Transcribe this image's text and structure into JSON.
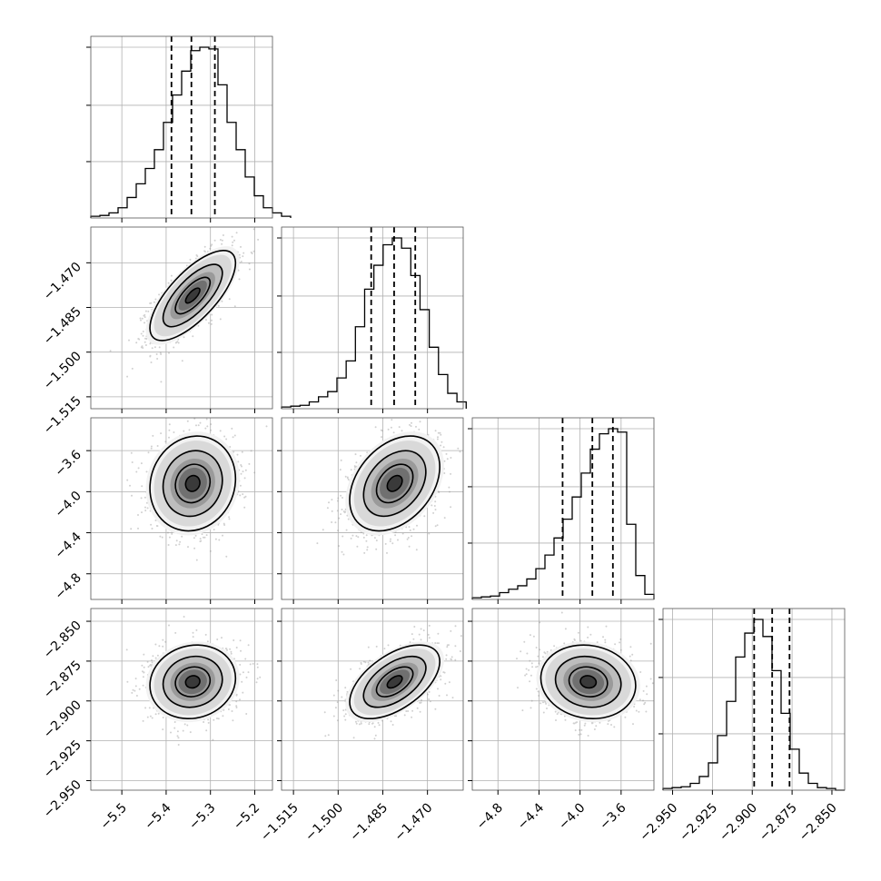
{
  "chart_data": {
    "type": "corner",
    "title": "",
    "n_params": 4,
    "params": [
      {
        "range": [
          -5.57,
          -5.16
        ],
        "ticks": [
          -5.5,
          -5.4,
          -5.3,
          -5.2
        ],
        "tick_labels": [
          "−5.5",
          "−5.4",
          "−5.3",
          "−5.2"
        ],
        "quantiles": [
          -5.388,
          -5.343,
          -5.29
        ],
        "hist_edges_start": -5.57,
        "hist_bin_width": 0.0205,
        "hist": [
          0.01,
          0.015,
          0.03,
          0.06,
          0.12,
          0.2,
          0.29,
          0.4,
          0.56,
          0.72,
          0.86,
          0.98,
          1.0,
          0.99,
          0.78,
          0.56,
          0.4,
          0.24,
          0.13,
          0.06,
          0.03,
          0.01
        ],
        "mean": -5.34,
        "std": 0.046
      },
      {
        "range": [
          -1.519,
          -1.458
        ],
        "ticks": [
          -1.515,
          -1.5,
          -1.485,
          -1.47
        ],
        "tick_labels": [
          "−1.515",
          "−1.500",
          "−1.485",
          "−1.470"
        ],
        "quantiles": [
          -1.4889,
          -1.4812,
          -1.4741
        ],
        "hist_edges_start": -1.519,
        "hist_bin_width": 0.0031,
        "hist": [
          0.01,
          0.015,
          0.02,
          0.04,
          0.07,
          0.1,
          0.18,
          0.28,
          0.48,
          0.7,
          0.84,
          0.96,
          1.0,
          0.94,
          0.78,
          0.58,
          0.36,
          0.2,
          0.09,
          0.04
        ],
        "mean": -1.481,
        "std": 0.0072
      },
      {
        "range": [
          -5.05,
          -3.28
        ],
        "ticks": [
          -4.8,
          -4.4,
          -4.0,
          -3.6
        ],
        "tick_labels": [
          "−4.8",
          "−4.4",
          "−4.0",
          "−3.6"
        ],
        "quantiles": [
          -4.17,
          -3.88,
          -3.68
        ],
        "hist_edges_start": -5.05,
        "hist_bin_width": 0.0885,
        "hist": [
          0.01,
          0.015,
          0.02,
          0.04,
          0.06,
          0.08,
          0.12,
          0.18,
          0.26,
          0.36,
          0.47,
          0.6,
          0.74,
          0.88,
          0.97,
          1.0,
          0.98,
          0.44,
          0.14,
          0.03
        ],
        "mean": -3.92,
        "std": 0.22
      },
      {
        "range": [
          -2.956,
          -2.842
        ],
        "ticks": [
          -2.95,
          -2.925,
          -2.9,
          -2.875,
          -2.85
        ],
        "tick_labels": [
          "−2.950",
          "−2.925",
          "−2.900",
          "−2.875",
          "−2.850"
        ],
        "quantiles": [
          -2.8988,
          -2.8875,
          -2.8766
        ],
        "hist_edges_start": -2.956,
        "hist_bin_width": 0.0057,
        "hist": [
          0.01,
          0.015,
          0.02,
          0.04,
          0.08,
          0.16,
          0.32,
          0.52,
          0.78,
          0.92,
          1.0,
          0.9,
          0.7,
          0.45,
          0.24,
          0.1,
          0.04,
          0.015,
          0.01,
          0.0
        ],
        "mean": -2.888,
        "std": 0.011
      }
    ],
    "correlations": [
      [
        1,
        0.72,
        0.1,
        0.1
      ],
      [
        0.72,
        1,
        0.35,
        0.55
      ],
      [
        0.1,
        0.35,
        1,
        -0.1
      ],
      [
        0.1,
        0.55,
        -0.1,
        1
      ]
    ],
    "grid": true,
    "legend": "none",
    "colors": {
      "line": "#000000",
      "grid": "#b0b0b0",
      "points": "#999999"
    }
  }
}
